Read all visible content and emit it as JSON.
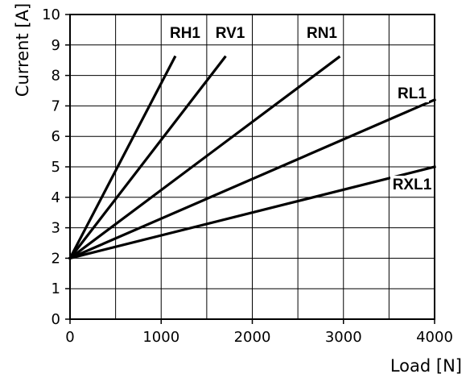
{
  "chart_data": {
    "type": "line",
    "xlabel": "Load [N]",
    "ylabel": "Current [A]",
    "xlim": [
      0,
      4000
    ],
    "ylim": [
      0,
      10
    ],
    "x_ticks": [
      0,
      1000,
      2000,
      3000,
      4000
    ],
    "y_ticks": [
      0,
      1,
      2,
      3,
      4,
      5,
      6,
      7,
      8,
      9,
      10
    ],
    "x_grid_step": 500,
    "y_grid_step": 1,
    "grid": true,
    "line_color": "#000000",
    "series": [
      {
        "name": "RH1",
        "x": [
          0,
          1150
        ],
        "y": [
          2.0,
          8.6
        ]
      },
      {
        "name": "RV1",
        "x": [
          0,
          1700
        ],
        "y": [
          2.0,
          8.6
        ]
      },
      {
        "name": "RN1",
        "x": [
          0,
          2950
        ],
        "y": [
          2.0,
          8.6
        ]
      },
      {
        "name": "RL1",
        "x": [
          0,
          4000
        ],
        "y": [
          2.0,
          7.2
        ]
      },
      {
        "name": "RXL1",
        "x": [
          0,
          4000
        ],
        "y": [
          2.0,
          5.0
        ]
      }
    ]
  }
}
